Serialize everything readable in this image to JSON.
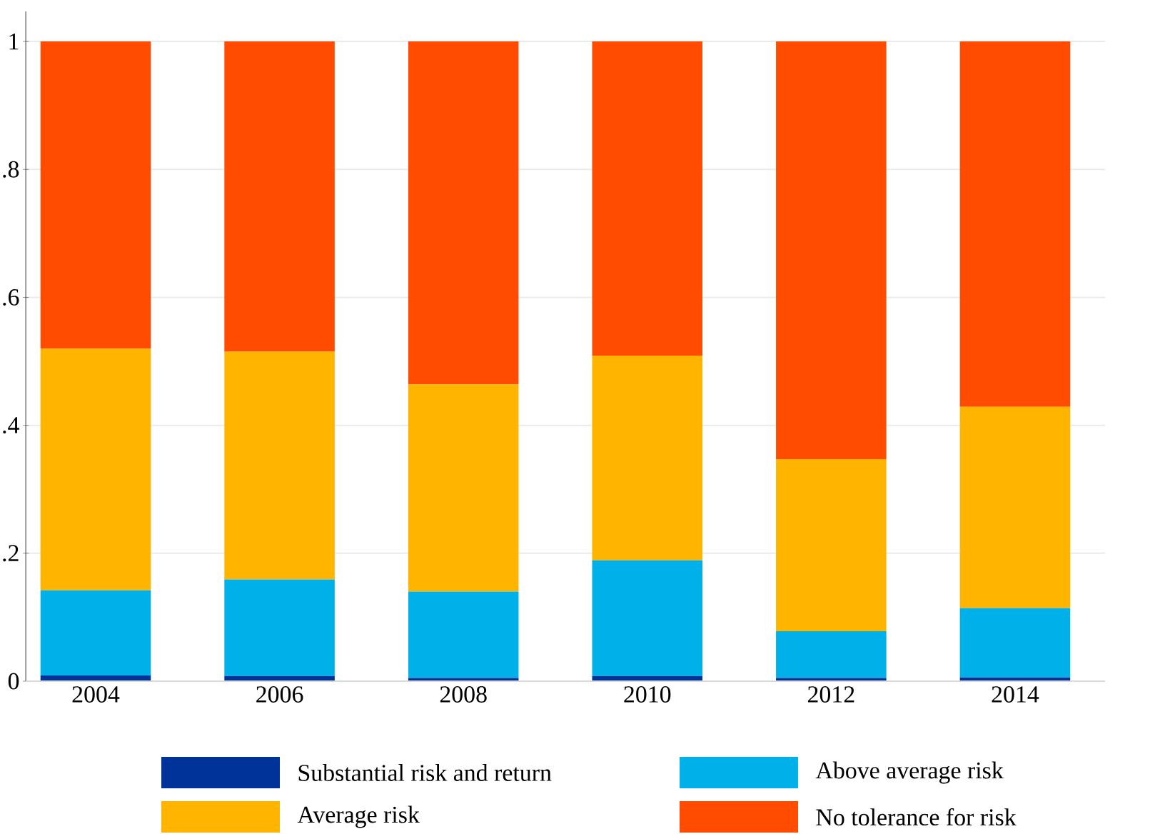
{
  "chart_data": {
    "type": "bar",
    "stacked": true,
    "categories": [
      "2004",
      "2006",
      "2008",
      "2010",
      "2012",
      "2014"
    ],
    "series": [
      {
        "name": "Substantial risk and return",
        "color": "#00339a",
        "values": [
          0.009,
          0.008,
          0.005,
          0.008,
          0.005,
          0.006
        ]
      },
      {
        "name": "Above average risk",
        "color": "#00b0e8",
        "values": [
          0.133,
          0.151,
          0.135,
          0.181,
          0.073,
          0.108
        ]
      },
      {
        "name": "Average risk",
        "color": "#ffb400",
        "values": [
          0.378,
          0.356,
          0.324,
          0.32,
          0.269,
          0.315
        ]
      },
      {
        "name": "No tolerance for risk",
        "color": "#ff4c00",
        "values": [
          0.48,
          0.485,
          0.536,
          0.491,
          0.653,
          0.571
        ]
      }
    ],
    "ylim": [
      0,
      1.047
    ],
    "yticks": [
      0,
      {
        "value": 0.2,
        "label": ".2"
      },
      {
        "value": 0.4,
        "label": ".4"
      },
      {
        "value": 0.6,
        "label": ".6"
      },
      {
        "value": 0.8,
        "label": ".8"
      },
      1
    ],
    "grid": "y",
    "legend": "bottom"
  }
}
